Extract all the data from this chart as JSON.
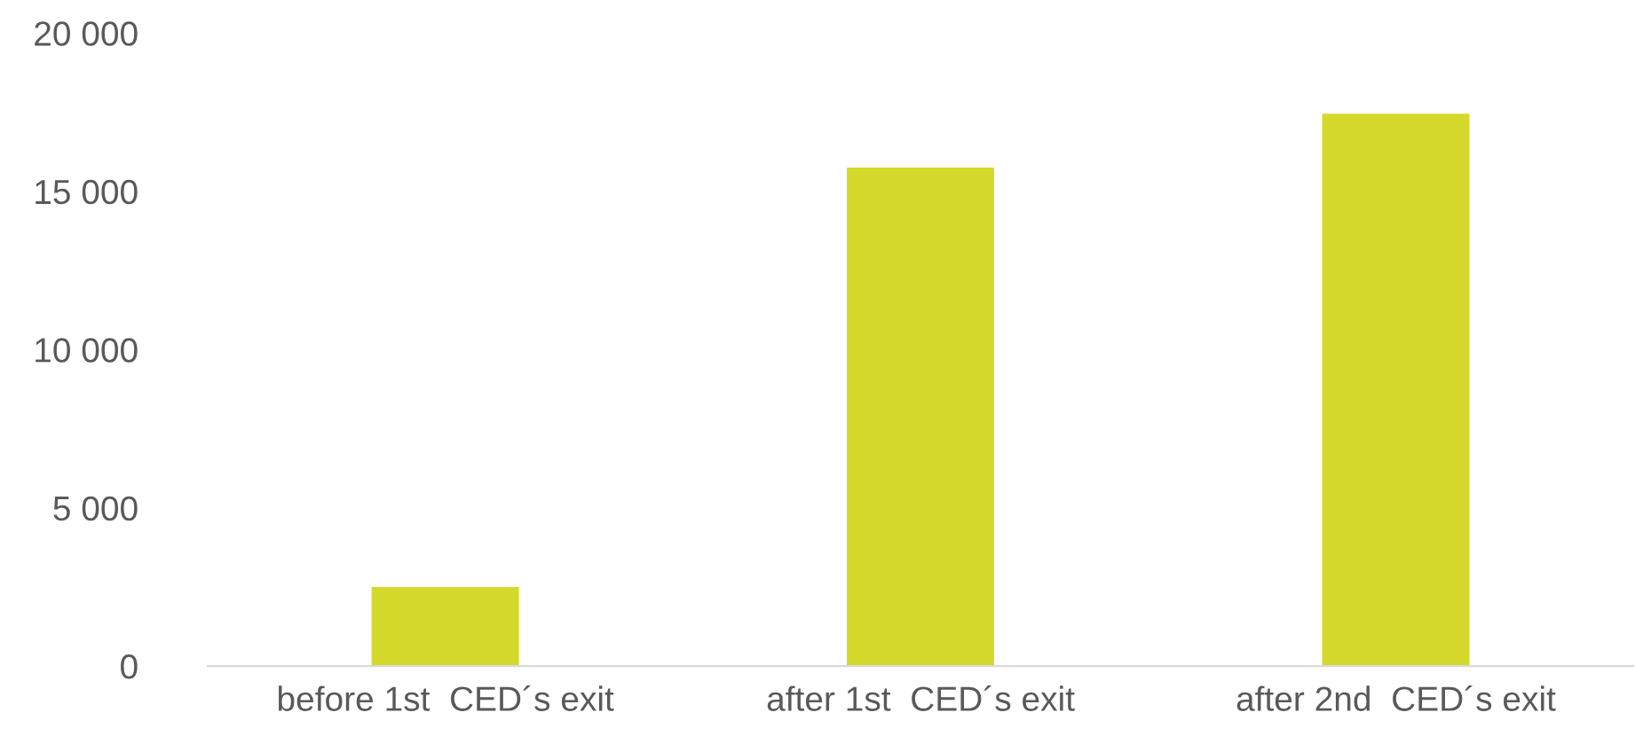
{
  "chart_data": {
    "type": "bar",
    "categories": [
      "before 1st  CED´s exit",
      "after 1st  CED´s exit",
      "after 2nd  CED´s exit"
    ],
    "values": [
      2500,
      15750,
      17450
    ],
    "color": "#d4d92b",
    "ylim": [
      0,
      20000
    ],
    "yticks": [
      {
        "value": 0,
        "label": "0"
      },
      {
        "value": 5000,
        "label": "5 000"
      },
      {
        "value": 10000,
        "label": "10 000"
      },
      {
        "value": 15000,
        "label": "15 000"
      },
      {
        "value": 20000,
        "label": "20 000"
      }
    ],
    "grid": false
  }
}
